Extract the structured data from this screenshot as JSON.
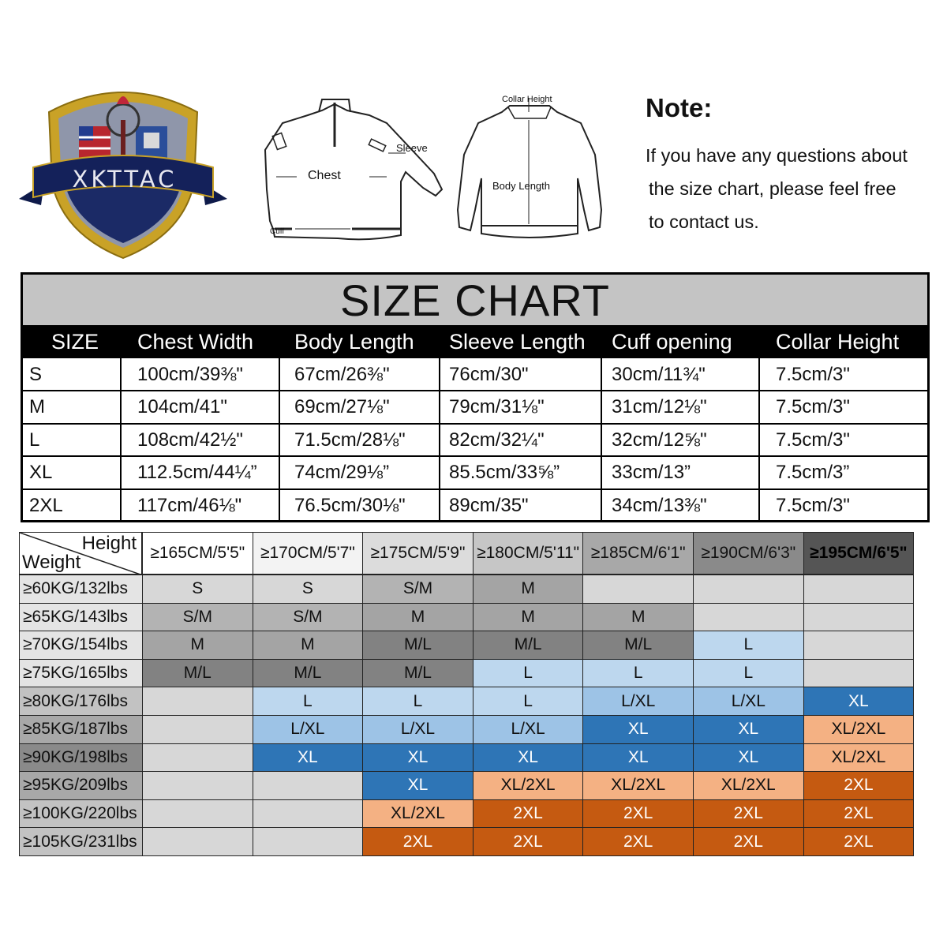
{
  "logo": {
    "brand": "XKTTAC",
    "colors": {
      "shield_gold": "#c9a227",
      "ribbon": "#14215a",
      "shield_navy": "#1b2a66",
      "shield_gray": "#8f96aa"
    }
  },
  "diagram": {
    "front_labels": {
      "chest": "Chest",
      "sleeve": "Sleeve",
      "cuff": "Cuff"
    },
    "back_labels": {
      "collar": "Collar Height",
      "body": "Body Length"
    }
  },
  "note": {
    "title": "Note:",
    "lines": [
      "If you have any questions about",
      "the size chart, please feel free",
      "to contact us."
    ]
  },
  "size_chart": {
    "title": "SIZE CHART",
    "headers": [
      "SIZE",
      "Chest Width",
      "Body Length",
      "Sleeve Length",
      "Cuff opening",
      "Collar Height"
    ],
    "rows": [
      [
        "S",
        "100cm/39⅜\"",
        "67cm/26⅜\"",
        "76cm/30\"",
        "30cm/11¾\"",
        "7.5cm/3\""
      ],
      [
        "M",
        "104cm/41\"",
        "69cm/27⅛\"",
        "79cm/31⅛\"",
        "31cm/12⅛\"",
        "7.5cm/3\""
      ],
      [
        "L",
        "108cm/42½\"",
        "71.5cm/28⅛\"",
        "82cm/32¼\"",
        "32cm/12⅝\"",
        "7.5cm/3\""
      ],
      [
        "XL",
        "112.5cm/44¼”",
        "74cm/29⅛”",
        "85.5cm/33⅝”",
        "33cm/13”",
        "7.5cm/3”"
      ],
      [
        "2XL",
        "117cm/46⅛\"",
        "76.5cm/30⅛\"",
        "89cm/35\"",
        "34cm/13⅜\"",
        "7.5cm/3\""
      ]
    ]
  },
  "fit_chart": {
    "corner": {
      "height": "Height",
      "weight": "Weight"
    },
    "height_headers": [
      "≥165CM/5'5\"",
      "≥170CM/5'7\"",
      "≥175CM/5'9\"",
      "≥180CM/5'11\"",
      "≥185CM/6'1\"",
      "≥190CM/6'3\"",
      "≥195CM/6'5\""
    ],
    "weight_labels": [
      "≥60KG/132lbs",
      "≥65KG/143lbs",
      "≥70KG/154lbs",
      "≥75KG/165lbs",
      "≥80KG/176lbs",
      "≥85KG/187lbs",
      "≥90KG/198lbs",
      "≥95KG/209lbs",
      "≥100KG/220lbs",
      "≥105KG/231lbs"
    ],
    "cells": [
      [
        "S",
        "S",
        "S/M",
        "M",
        "",
        "",
        ""
      ],
      [
        "S/M",
        "S/M",
        "M",
        "M",
        "M",
        "",
        ""
      ],
      [
        "M",
        "M",
        "M/L",
        "M/L",
        "M/L",
        "L",
        ""
      ],
      [
        "M/L",
        "M/L",
        "M/L",
        "L",
        "L",
        "L",
        ""
      ],
      [
        "",
        "L",
        "L",
        "L",
        "L/XL",
        "L/XL",
        "XL"
      ],
      [
        "",
        "L/XL",
        "L/XL",
        "L/XL",
        "XL",
        "XL",
        "XL/2XL"
      ],
      [
        "",
        "XL",
        "XL",
        "XL",
        "XL",
        "XL",
        "XL/2XL"
      ],
      [
        "",
        "",
        "XL",
        "XL/2XL",
        "XL/2XL",
        "XL/2XL",
        "2XL"
      ],
      [
        "",
        "",
        "XL/2XL",
        "2XL",
        "2XL",
        "2XL",
        "2XL"
      ],
      [
        "",
        "",
        "2XL",
        "2XL",
        "2XL",
        "2XL",
        "2XL"
      ]
    ],
    "header_colors": [
      "#ffffff",
      "#f3f3f3",
      "#dcdcdc",
      "#c6c6c6",
      "#a8a8a8",
      "#8a8a8a",
      "#555555"
    ],
    "weight_colors": [
      "#e4e4e4",
      "#e4e4e4",
      "#e4e4e4",
      "#e4e4e4",
      "#c2c2c2",
      "#a8a8a8",
      "#8a8a8a",
      "#a8a8a8",
      "#c2c2c2",
      "#c2c2c2"
    ],
    "size_colors": {
      "S": "#d7d7d7",
      "S/M": "#b3b3b3",
      "M": "#a4a4a4",
      "M/L": "#828282",
      "L": "#bdd7ee",
      "L/XL": "#9dc3e6",
      "XL": "#2e75b6",
      "XL/2XL": "#f4b183",
      "2XL": "#c55a11"
    },
    "empty_colors": [
      "#d7d7d7",
      "#d7d7d7",
      "#d7d7d7",
      "#d7d7d7",
      "#d7d7d7",
      "#d7d7d7",
      "#d7d7d7"
    ]
  }
}
